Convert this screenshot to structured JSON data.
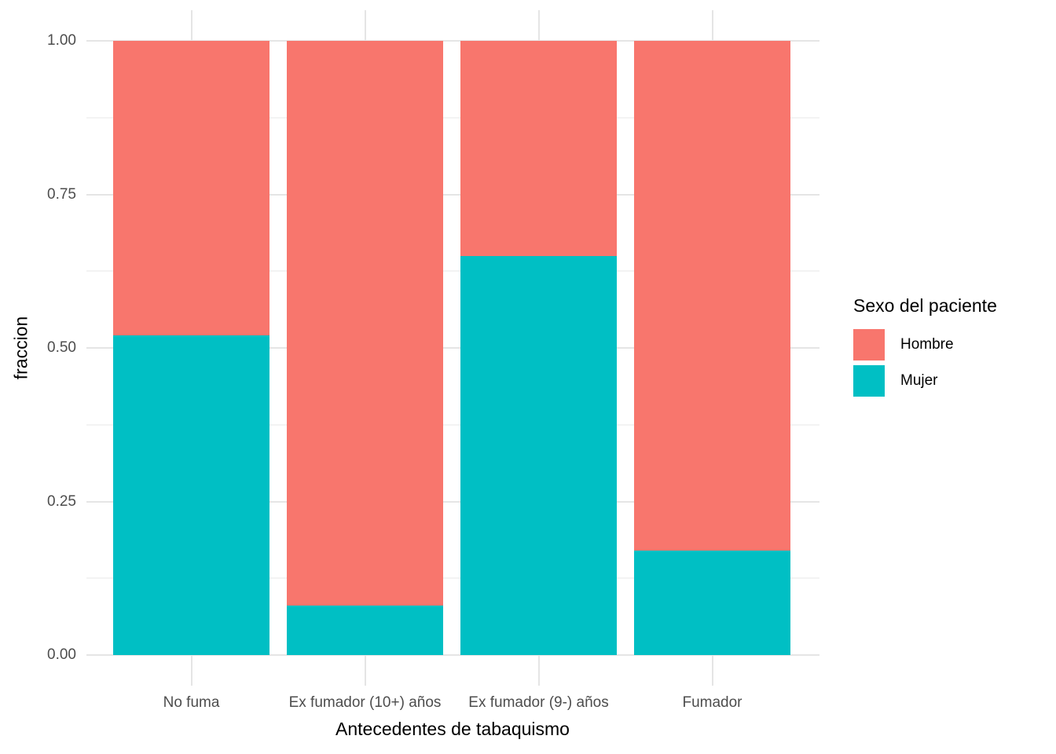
{
  "chart_data": {
    "type": "bar",
    "stacked": true,
    "orientation": "vertical",
    "title": "",
    "xlabel": "Antecedentes de tabaquismo",
    "ylabel": "fraccion",
    "categories": [
      "No fuma",
      "Ex fumador (10+) años",
      "Ex fumador (9-) años",
      "Fumador"
    ],
    "series": [
      {
        "name": "Mujer",
        "color": "#00BFC4",
        "values": [
          0.52,
          0.08,
          0.65,
          0.17
        ]
      },
      {
        "name": "Hombre",
        "color": "#F8766D",
        "values": [
          0.48,
          0.92,
          0.35,
          0.83
        ]
      }
    ],
    "ylim": [
      0,
      1
    ],
    "ytick_values": [
      0,
      0.25,
      0.5,
      0.75,
      1.0
    ],
    "ytick_labels": [
      "0.00",
      "0.25",
      "0.50",
      "0.75",
      "1.00"
    ],
    "minor_gridline_values": [
      0.125,
      0.375,
      0.625,
      0.875
    ],
    "grid": "on",
    "legend": {
      "title": "Sexo del paciente",
      "position": "right",
      "entries": [
        {
          "label": "Hombre",
          "color": "#F8766D"
        },
        {
          "label": "Mujer",
          "color": "#00BFC4"
        }
      ]
    },
    "colors": {
      "background": "#FFFFFF",
      "gridline_major": "#E5E5E5",
      "gridline_minor": "#F3F3F3",
      "tick_text": "#4D4D4D",
      "axis_title_text": "#000000"
    }
  }
}
